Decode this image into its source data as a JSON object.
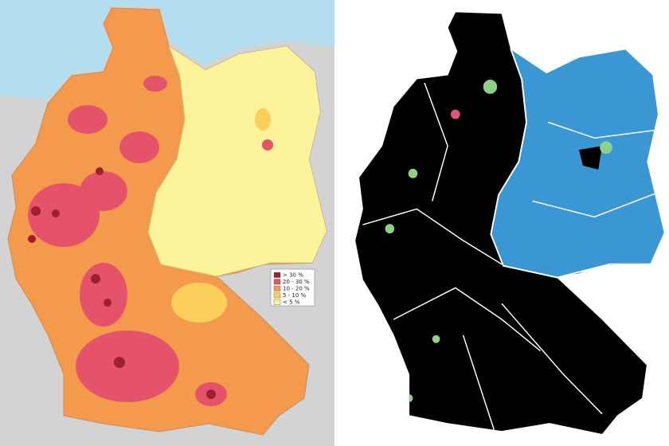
{
  "legend": {
    "items": [
      {
        "label": "> 30 %",
        "color": "#9e1f2e"
      },
      {
        "label": "20 - 30 %",
        "color": "#e5536a"
      },
      {
        "label": "10 - 20 %",
        "color": "#f49a4c"
      },
      {
        "label": "5 - 10 %",
        "color": "#fccf5a"
      },
      {
        "label": "< 5 %",
        "color": "#fdf39b"
      }
    ]
  }
}
